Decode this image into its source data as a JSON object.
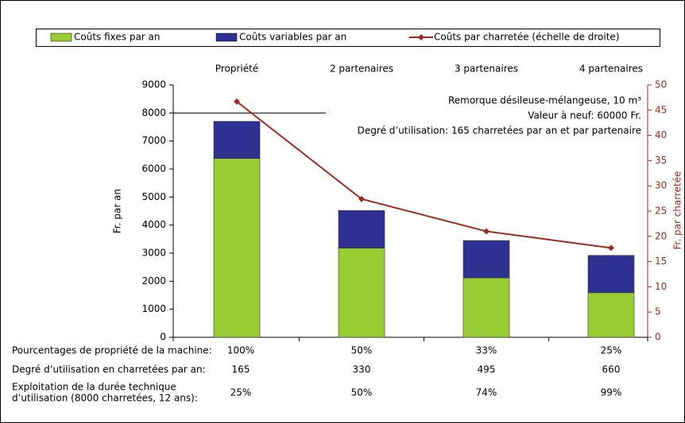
{
  "chart_data": {
    "type": "bar",
    "categories": [
      "Propriété",
      "2 partenaires",
      "3 partenaires",
      "4 partenaires"
    ],
    "series": [
      {
        "name": "Coûts fixes par an",
        "color": "#99cc33",
        "values": [
          6380,
          3180,
          2120,
          1590
        ]
      },
      {
        "name": "Coûts variables par an",
        "color": "#2e3192",
        "values": [
          1320,
          1340,
          1330,
          1330
        ]
      },
      {
        "name": "Coûts par charretée (échelle de droite)",
        "color": "#a0281e",
        "axis": "y2",
        "values": [
          46.7,
          27.4,
          21.0,
          17.7
        ]
      }
    ],
    "stacked": true,
    "ylabel": "Fr. par an",
    "y2label": "Fr. par charretée",
    "ylim": [
      0,
      9000
    ],
    "yticks": [
      0,
      1000,
      2000,
      3000,
      4000,
      5000,
      6000,
      7000,
      8000,
      9000
    ],
    "y2lim": [
      0,
      50
    ],
    "y2ticks": [
      0,
      5,
      10,
      15,
      20,
      25,
      30,
      35,
      40,
      45,
      50
    ],
    "annotations": [
      "Remorque désileuse-mélangeuse, 10 m³",
      "Valeur à neuf: 60000 Fr.",
      "Degré d’utilisation: 165 charretées par an et par partenaire"
    ],
    "table": {
      "rows": [
        {
          "label": [
            "Pourcentages de propriété de la machine:"
          ],
          "values": [
            "100%",
            "50%",
            "33%",
            "25%"
          ]
        },
        {
          "label": [
            "Degré d’utilisation en charretées par an:"
          ],
          "values": [
            "165",
            "330",
            "495",
            "660"
          ]
        },
        {
          "label": [
            "Exploitation de la durée technique",
            "d’utilisation (8000 charretées, 12 ans):"
          ],
          "values": [
            "25%",
            "50%",
            "74%",
            "99%"
          ]
        }
      ]
    }
  }
}
